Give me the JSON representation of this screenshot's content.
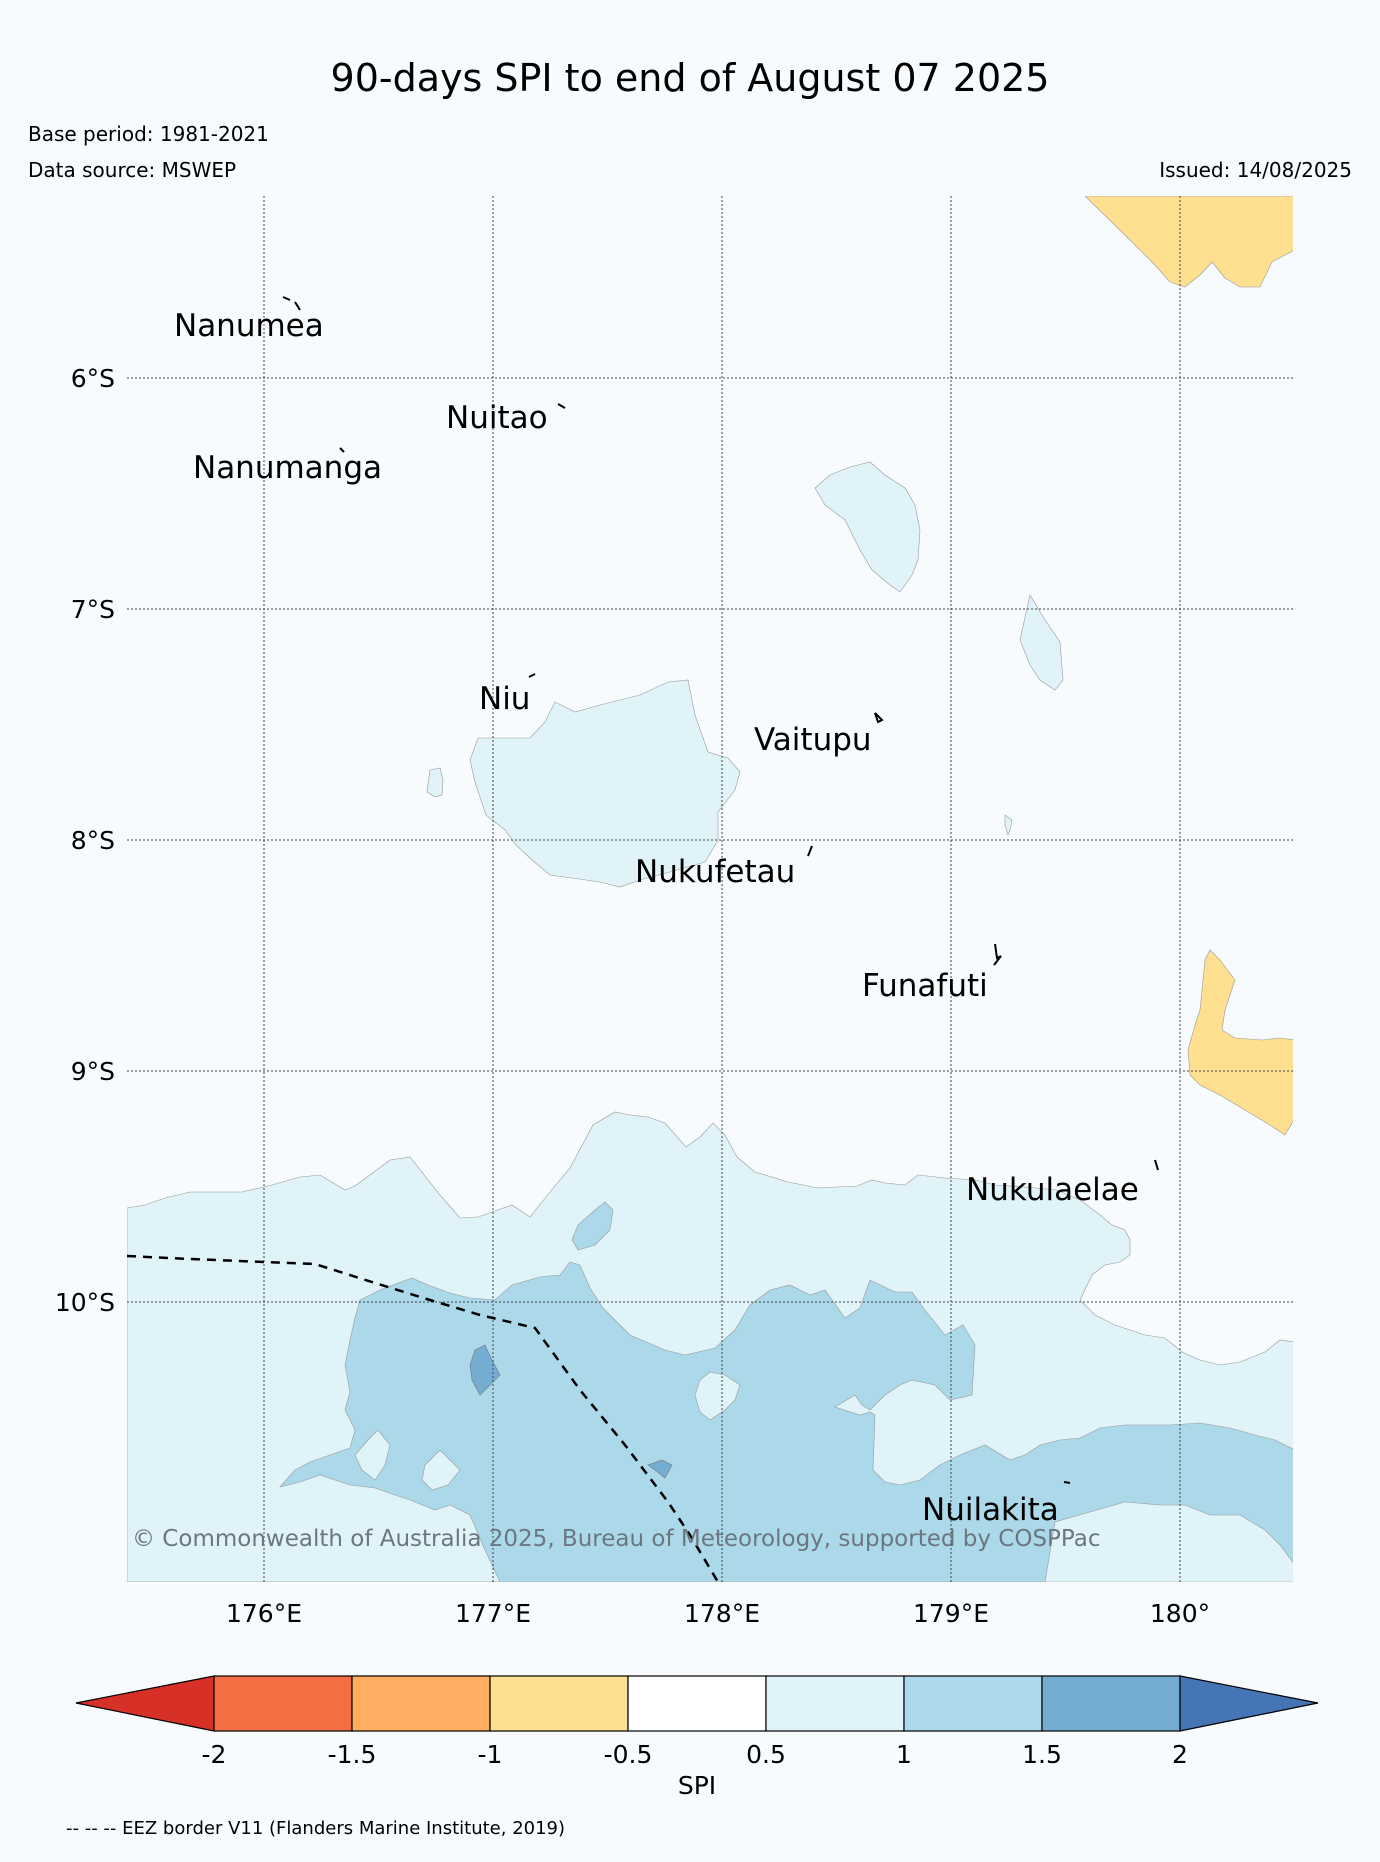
{
  "title": "90-days SPI to end of August 07 2025",
  "base_period": "Base period: 1981-2021",
  "data_source": "Data source: MSWEP",
  "issued": "Issued: 14/08/2025",
  "lat_labels": [
    "6°S",
    "7°S",
    "8°S",
    "9°S",
    "10°S"
  ],
  "lon_labels": [
    "176°E",
    "177°E",
    "178°E",
    "179°E",
    "180°"
  ],
  "places": [
    "Nanumea",
    "Nuitao",
    "Nanumanga",
    "Niu",
    "Vaitupu",
    "Nukufetau",
    "Funafuti",
    "Nukulaelae",
    "Nuilakita"
  ],
  "copyright": "© Commonwealth of Australia 2025, Bureau of Meteorology, supported by COSPPac",
  "colorbar": {
    "label": "SPI",
    "ticks": [
      "-2",
      "-1.5",
      "-1",
      "-0.5",
      "0.5",
      "1",
      "1.5",
      "2"
    ],
    "colors": [
      "#d73027",
      "#f46d43",
      "#fdae61",
      "#fee090",
      "#ffffff",
      "#e0f3f8",
      "#abd9e9",
      "#74add1",
      "#4575b4"
    ]
  },
  "footer": "-- -- -- EEZ border V11 (Flanders Marine Institute, 2019)"
}
